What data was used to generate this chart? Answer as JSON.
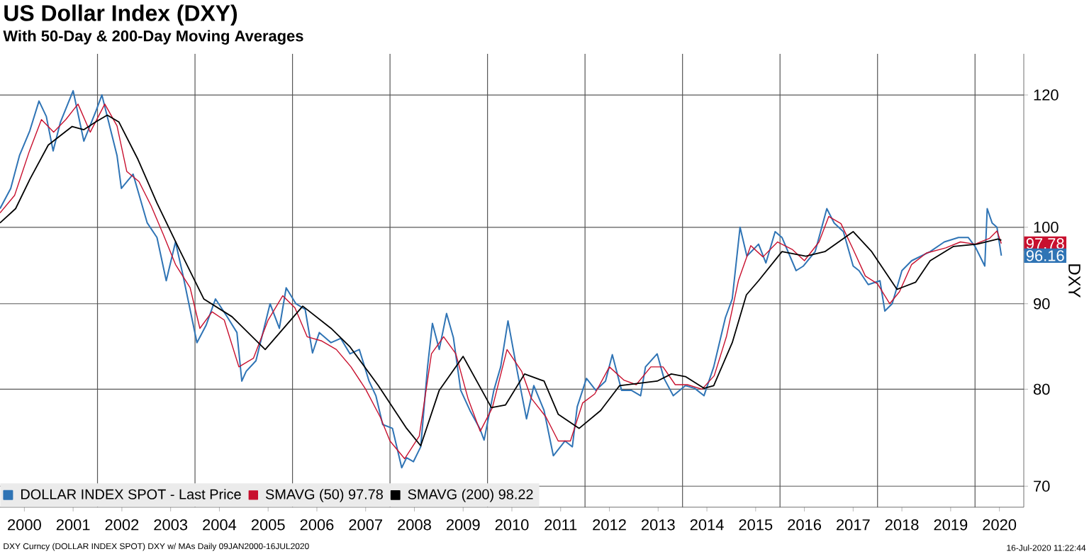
{
  "chart_data": {
    "type": "line",
    "title": "US Dollar Index (DXY)",
    "subtitle": "With 50-Day & 200-Day Moving Averages",
    "ylabel": "DXY",
    "log": "y",
    "grid": "y",
    "legend": "bottom left",
    "marker": "none",
    "line_style": "solid",
    "xlim": [
      2000,
      2021
    ],
    "ylim": [
      68,
      127
    ],
    "yticks": [
      70,
      80,
      90,
      100,
      120
    ],
    "xticks": [
      {
        "value": 2000.5,
        "label": "2000"
      },
      {
        "value": 2001.5,
        "label": "2001"
      },
      {
        "value": 2002.5,
        "label": "2002"
      },
      {
        "value": 2003.5,
        "label": "2003"
      },
      {
        "value": 2004.5,
        "label": "2004"
      },
      {
        "value": 2005.5,
        "label": "2005"
      },
      {
        "value": 2006.5,
        "label": "2006"
      },
      {
        "value": 2007.5,
        "label": "2007"
      },
      {
        "value": 2008.5,
        "label": "2008"
      },
      {
        "value": 2009.5,
        "label": "2009"
      },
      {
        "value": 2010.5,
        "label": "2010"
      },
      {
        "value": 2011.5,
        "label": "2011"
      },
      {
        "value": 2012.5,
        "label": "2012"
      },
      {
        "value": 2013.5,
        "label": "2013"
      },
      {
        "value": 2014.5,
        "label": "2014"
      },
      {
        "value": 2015.5,
        "label": "2015"
      },
      {
        "value": 2016.5,
        "label": "2016"
      },
      {
        "value": 2017.5,
        "label": "2017"
      },
      {
        "value": 2018.5,
        "label": "2018"
      },
      {
        "value": 2019.5,
        "label": "2019"
      },
      {
        "value": 2020.5,
        "label": "2020"
      }
    ],
    "ref_lines": [
      {
        "axis": "x",
        "value": 2002,
        "color": "#555555"
      },
      {
        "axis": "x",
        "value": 2004,
        "color": "#555555"
      },
      {
        "axis": "x",
        "value": 2006,
        "color": "#555555"
      },
      {
        "axis": "x",
        "value": 2008,
        "color": "#555555"
      },
      {
        "axis": "x",
        "value": 2010,
        "color": "#555555"
      },
      {
        "axis": "x",
        "value": 2012,
        "color": "#555555"
      },
      {
        "axis": "x",
        "value": 2014,
        "color": "#555555"
      },
      {
        "axis": "x",
        "value": 2016,
        "color": "#555555"
      },
      {
        "axis": "x",
        "value": 2018,
        "color": "#555555"
      },
      {
        "axis": "x",
        "value": 2020,
        "color": "#555555"
      }
    ],
    "series": [
      {
        "name": "DOLLAR INDEX SPOT - Last Price",
        "color": "#2f74b5",
        "x": [
          2000.0,
          2000.22,
          2000.4,
          2000.61,
          2000.8,
          2000.95,
          2001.09,
          2001.24,
          2001.5,
          2001.72,
          2001.96,
          2002.09,
          2002.4,
          2002.49,
          2002.73,
          2003.02,
          2003.22,
          2003.41,
          2003.6,
          2003.75,
          2004.04,
          2004.23,
          2004.42,
          2004.67,
          2004.86,
          2004.96,
          2005.05,
          2005.25,
          2005.54,
          2005.73,
          2005.87,
          2006.07,
          2006.26,
          2006.41,
          2006.55,
          2006.79,
          2006.99,
          2007.18,
          2007.37,
          2007.57,
          2007.71,
          2007.85,
          2008.05,
          2008.24,
          2008.34,
          2008.48,
          2008.63,
          2008.77,
          2008.87,
          2009.01,
          2009.16,
          2009.3,
          2009.45,
          2009.64,
          2009.84,
          2009.93,
          2010.13,
          2010.27,
          2010.42,
          2010.61,
          2010.8,
          2010.95,
          2011.16,
          2011.35,
          2011.59,
          2011.74,
          2011.84,
          2012.03,
          2012.22,
          2012.42,
          2012.56,
          2012.75,
          2012.95,
          2013.14,
          2013.24,
          2013.48,
          2013.62,
          2013.81,
          2014.06,
          2014.25,
          2014.44,
          2014.64,
          2014.88,
          2015.02,
          2015.18,
          2015.32,
          2015.56,
          2015.71,
          2015.9,
          2016.04,
          2016.33,
          2016.48,
          2016.72,
          2016.96,
          2017.11,
          2017.3,
          2017.5,
          2017.62,
          2017.81,
          2018.05,
          2018.15,
          2018.3,
          2018.44,
          2018.5,
          2018.7,
          2019.08,
          2019.37,
          2019.66,
          2019.86,
          2020.0,
          2020.2,
          2020.25,
          2020.35,
          2020.45,
          2020.54
        ],
        "values": [
          102.6,
          105.5,
          110.4,
          114.2,
          119,
          116.5,
          111.1,
          115.6,
          120.7,
          112.6,
          117.2,
          120,
          110.4,
          105.5,
          107.6,
          100.6,
          98.6,
          92.9,
          98,
          93.7,
          85.3,
          87.4,
          90.6,
          88.3,
          86.5,
          80.9,
          82,
          83.2,
          90,
          87,
          92,
          90,
          89.3,
          84.1,
          86.5,
          85.3,
          85.8,
          84,
          84.5,
          80.9,
          79.3,
          76.2,
          75.8,
          71.8,
          72.8,
          72.4,
          73.9,
          82.5,
          87.6,
          84.5,
          88.8,
          85.9,
          79.9,
          77.7,
          75.8,
          74.6,
          79.9,
          82.5,
          87.9,
          82,
          76.8,
          80.4,
          77.7,
          73,
          74.5,
          73.9,
          78.1,
          81.2,
          79.9,
          80.9,
          83.9,
          79.9,
          79.9,
          79.3,
          82.5,
          84,
          81.2,
          79.3,
          80.4,
          80.1,
          79.3,
          82.5,
          88.3,
          90.6,
          100,
          96.1,
          97.7,
          95.2,
          99.4,
          98.6,
          94.2,
          94.8,
          96.7,
          102.6,
          100.6,
          99.4,
          94.8,
          94.2,
          92.4,
          92.9,
          89.1,
          90,
          92.9,
          94.2,
          95.5,
          96.7,
          98,
          98.6,
          98.6,
          97.4,
          94.8,
          102.6,
          100.6,
          100,
          96.16
        ]
      },
      {
        "name": "SMAVG (50) 97.78",
        "color": "#c8102e",
        "x": [
          2000.0,
          2000.3,
          2000.6,
          2000.85,
          2001.1,
          2001.35,
          2001.6,
          2001.85,
          2002.15,
          2002.4,
          2002.6,
          2002.85,
          2003.1,
          2003.35,
          2003.6,
          2003.9,
          2004.1,
          2004.35,
          2004.6,
          2004.9,
          2005.2,
          2005.5,
          2005.8,
          2006.05,
          2006.3,
          2006.6,
          2006.9,
          2007.2,
          2007.5,
          2007.8,
          2008.0,
          2008.3,
          2008.6,
          2008.85,
          2009.1,
          2009.35,
          2009.6,
          2009.85,
          2010.1,
          2010.4,
          2010.7,
          2010.9,
          2011.2,
          2011.45,
          2011.7,
          2011.95,
          2012.2,
          2012.5,
          2012.8,
          2013.05,
          2013.35,
          2013.6,
          2013.85,
          2014.1,
          2014.4,
          2014.65,
          2014.9,
          2015.15,
          2015.4,
          2015.65,
          2015.95,
          2016.25,
          2016.5,
          2016.8,
          2017.0,
          2017.25,
          2017.5,
          2017.75,
          2018.0,
          2018.25,
          2018.45,
          2018.7,
          2019.0,
          2019.4,
          2019.7,
          2020.0,
          2020.3,
          2020.45,
          2020.54
        ],
        "values": [
          102,
          104.5,
          111,
          116,
          114,
          116,
          118.5,
          114,
          118.5,
          115,
          108,
          106.5,
          103,
          99,
          95,
          92,
          87,
          89,
          88,
          82.5,
          83.5,
          88,
          91,
          89.5,
          86,
          85.5,
          84.5,
          82.5,
          80,
          77,
          74.5,
          72.7,
          75,
          84,
          86,
          84,
          79,
          75.5,
          78,
          84.5,
          82,
          79,
          77,
          74.5,
          74.5,
          78.5,
          79.5,
          82.5,
          81,
          80.5,
          82.5,
          82.5,
          80.5,
          80.5,
          80,
          81.5,
          86,
          93,
          97.5,
          96,
          98,
          97,
          95.5,
          98,
          101.5,
          100.5,
          97,
          93.5,
          92.5,
          90,
          91.5,
          95,
          96.5,
          97.2,
          98,
          97.7,
          98.5,
          99.5,
          97.78
        ]
      },
      {
        "name": "SMAVG (200) 98.22",
        "color": "#000000",
        "x": [
          2000.0,
          2000.32,
          2000.61,
          2000.99,
          2001.48,
          2001.72,
          2001.96,
          2002.2,
          2002.44,
          2002.83,
          2003.22,
          2003.7,
          2004.18,
          2004.76,
          2005.44,
          2006.21,
          2006.79,
          2007.18,
          2007.76,
          2008.34,
          2008.63,
          2009.01,
          2009.5,
          2010.08,
          2010.37,
          2010.76,
          2011.16,
          2011.45,
          2011.88,
          2012.32,
          2012.71,
          2013.48,
          2013.77,
          2014.06,
          2014.44,
          2014.64,
          2015.02,
          2015.31,
          2015.56,
          2016.04,
          2016.53,
          2016.92,
          2017.5,
          2017.88,
          2018.4,
          2018.78,
          2019.08,
          2019.56,
          2020.04,
          2020.47,
          2020.54
        ],
        "values": [
          100.6,
          102.6,
          106.8,
          112,
          114.9,
          114.4,
          115.6,
          116.7,
          115.6,
          109.8,
          103.4,
          96.7,
          90.6,
          88.4,
          84.5,
          89.7,
          87,
          84.8,
          80.4,
          75.8,
          74,
          79.9,
          83.7,
          78,
          78.3,
          81.7,
          80.9,
          77.3,
          75.8,
          77.7,
          80.4,
          80.9,
          81.7,
          81.4,
          80.1,
          80.4,
          85.3,
          91.1,
          92.9,
          96.7,
          96.1,
          96.7,
          99.4,
          96.7,
          91.8,
          92.7,
          95.5,
          97.4,
          97.7,
          98.4,
          98.22
        ]
      }
    ],
    "annotations": [
      "DXY Curncy (DOLLAR INDEX SPOT) DXY w/ MAs  Daily 09JAN2000-16JUL2020",
      "16-Jul-2020 11:22:44",
      {
        "text": "97.78",
        "x": 2020.54,
        "y": 97.78
      },
      {
        "text": "96.16",
        "x": 2020.54,
        "y": 96.16
      }
    ]
  }
}
